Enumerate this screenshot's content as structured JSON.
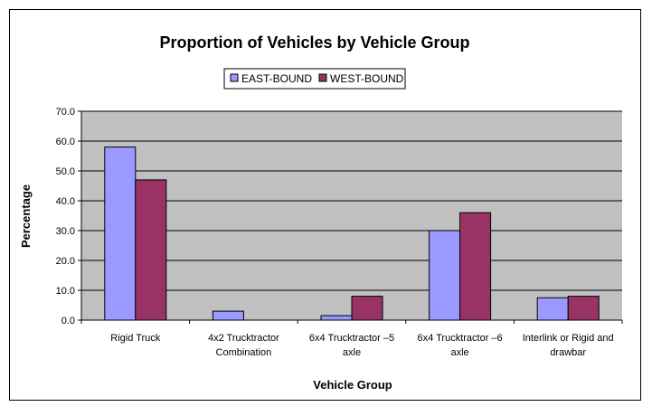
{
  "chart_data": {
    "type": "bar",
    "title": "Proportion of Vehicles by Vehicle Group",
    "xlabel": "Vehicle Group",
    "ylabel": "Percentage",
    "ylim": [
      0,
      70
    ],
    "yticks": [
      "0.0",
      "10.0",
      "20.0",
      "30.0",
      "40.0",
      "50.0",
      "60.0",
      "70.0"
    ],
    "categories": [
      [
        "Rigid Truck"
      ],
      [
        "4x2 Trucktractor",
        "Combination"
      ],
      [
        "6x4 Trucktractor –5",
        "axle"
      ],
      [
        "6x4 Trucktractor –6",
        "axle"
      ],
      [
        "Interlink or Rigid and",
        "drawbar"
      ]
    ],
    "series": [
      {
        "name": "EAST-BOUND",
        "color": "#9999FF",
        "values": [
          58.0,
          3.0,
          1.5,
          30.0,
          7.5
        ]
      },
      {
        "name": "WEST-BOUND",
        "color": "#993366",
        "values": [
          47.0,
          0.0,
          8.0,
          36.0,
          8.0
        ]
      }
    ],
    "plot_background": "#C0C0C0",
    "grid": true,
    "legend_position": "top-center"
  }
}
